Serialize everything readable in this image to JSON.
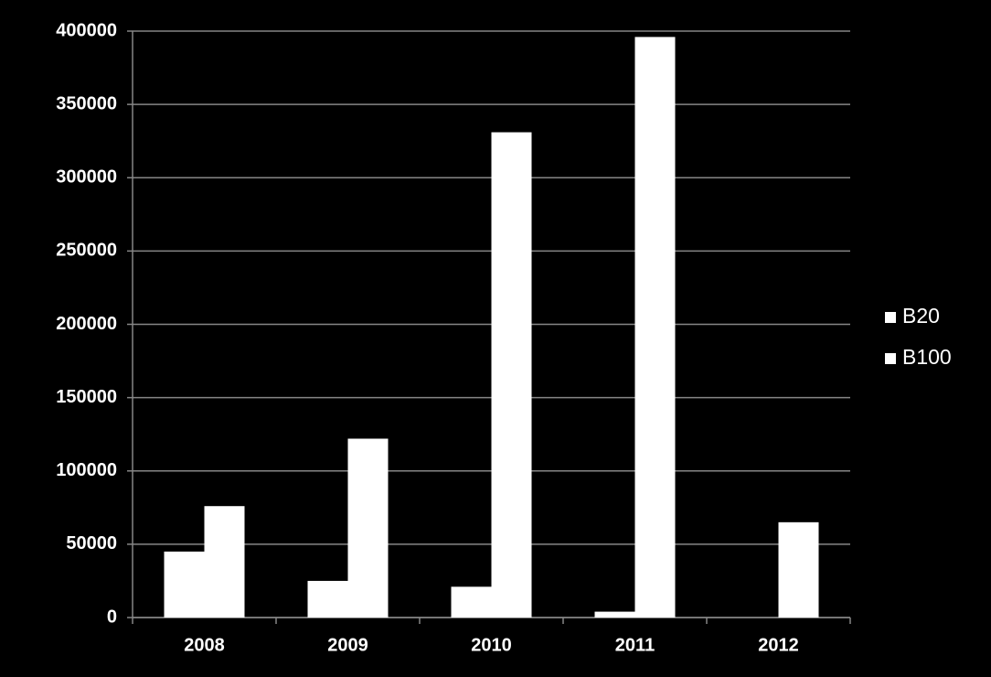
{
  "chart_data": {
    "type": "bar",
    "categories": [
      "2008",
      "2009",
      "2010",
      "2011",
      "2012"
    ],
    "series": [
      {
        "name": "B20",
        "color": "#ffffff",
        "values": [
          45000,
          25000,
          21000,
          4000,
          0
        ]
      },
      {
        "name": "B100",
        "color": "#ffffff",
        "values": [
          76000,
          122000,
          331000,
          396000,
          65000
        ]
      }
    ],
    "ylim": [
      0,
      400000
    ],
    "yticks": [
      0,
      50000,
      100000,
      150000,
      200000,
      250000,
      300000,
      350000,
      400000
    ],
    "grid": true,
    "legend": "right"
  }
}
